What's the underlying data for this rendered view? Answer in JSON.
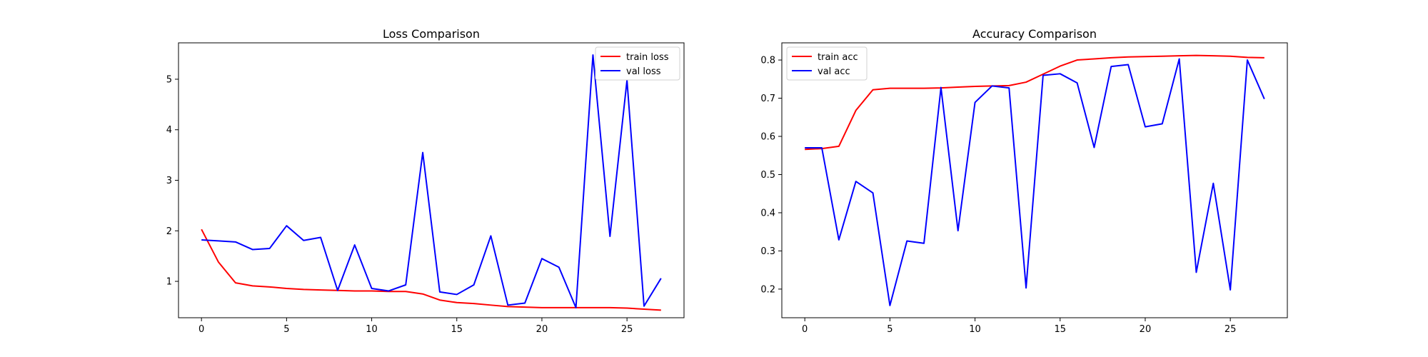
{
  "chart_data": [
    {
      "type": "line",
      "title": "Loss Comparison",
      "xlabel": "",
      "ylabel": "",
      "x": [
        0,
        1,
        2,
        3,
        4,
        5,
        6,
        7,
        8,
        9,
        10,
        11,
        12,
        13,
        14,
        15,
        16,
        17,
        18,
        19,
        20,
        21,
        22,
        23,
        24,
        25,
        26,
        27
      ],
      "xlim": [
        -1.35,
        28.35
      ],
      "ylim": [
        0.28,
        5.72
      ],
      "xticks": [
        0,
        5,
        10,
        15,
        20,
        25
      ],
      "yticks": [
        1,
        2,
        3,
        4,
        5
      ],
      "legend": "top-right",
      "grid": false,
      "series": [
        {
          "name": "train loss",
          "color": "#ff0000",
          "values": [
            2.03,
            1.38,
            0.97,
            0.91,
            0.89,
            0.86,
            0.84,
            0.83,
            0.82,
            0.81,
            0.81,
            0.8,
            0.8,
            0.75,
            0.63,
            0.58,
            0.56,
            0.53,
            0.5,
            0.49,
            0.48,
            0.48,
            0.48,
            0.48,
            0.48,
            0.47,
            0.45,
            0.43
          ]
        },
        {
          "name": "val loss",
          "color": "#0000ff",
          "values": [
            1.82,
            1.8,
            1.78,
            1.63,
            1.65,
            2.1,
            1.81,
            1.87,
            0.82,
            1.72,
            0.86,
            0.81,
            0.93,
            3.55,
            0.79,
            0.74,
            0.93,
            1.9,
            0.53,
            0.57,
            1.45,
            1.28,
            0.48,
            5.48,
            1.89,
            4.98,
            0.51,
            1.06
          ]
        }
      ]
    },
    {
      "type": "line",
      "title": "Accuracy Comparison",
      "xlabel": "",
      "ylabel": "",
      "x": [
        0,
        1,
        2,
        3,
        4,
        5,
        6,
        7,
        8,
        9,
        10,
        11,
        12,
        13,
        14,
        15,
        16,
        17,
        18,
        19,
        20,
        21,
        22,
        23,
        24,
        25,
        26,
        27
      ],
      "xlim": [
        -1.35,
        28.35
      ],
      "ylim": [
        0.125,
        0.845
      ],
      "xticks": [
        0,
        5,
        10,
        15,
        20,
        25
      ],
      "yticks": [
        0.2,
        0.3,
        0.4,
        0.5,
        0.6,
        0.7,
        0.8
      ],
      "legend": "top-left",
      "grid": false,
      "series": [
        {
          "name": "train acc",
          "color": "#ff0000",
          "values": [
            0.566,
            0.568,
            0.574,
            0.668,
            0.722,
            0.726,
            0.726,
            0.726,
            0.727,
            0.729,
            0.731,
            0.732,
            0.733,
            0.742,
            0.763,
            0.784,
            0.8,
            0.803,
            0.806,
            0.808,
            0.809,
            0.81,
            0.811,
            0.812,
            0.811,
            0.81,
            0.807,
            0.806
          ]
        },
        {
          "name": "val acc",
          "color": "#0000ff",
          "values": [
            0.57,
            0.57,
            0.329,
            0.482,
            0.452,
            0.157,
            0.326,
            0.32,
            0.728,
            0.353,
            0.689,
            0.732,
            0.727,
            0.203,
            0.76,
            0.764,
            0.74,
            0.571,
            0.783,
            0.788,
            0.625,
            0.633,
            0.803,
            0.244,
            0.477,
            0.198,
            0.8,
            0.698
          ]
        }
      ]
    }
  ]
}
